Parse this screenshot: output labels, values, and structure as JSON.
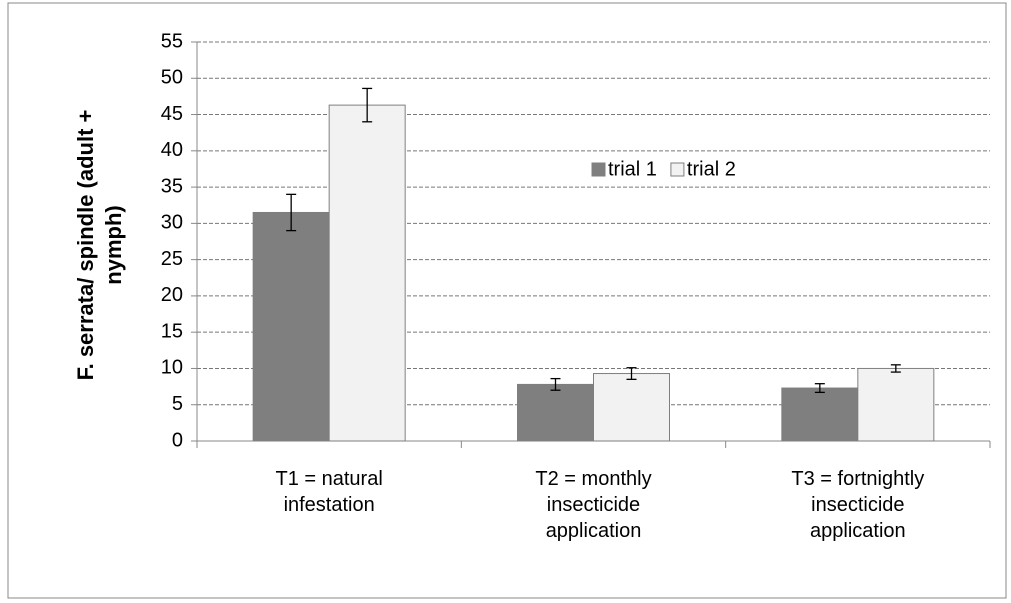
{
  "chart_data": {
    "type": "bar",
    "ylabel": "F. serrata/ spindle (adult + nymph)",
    "categories": [
      "T1 = natural infestation",
      "T2 = monthly insecticide application",
      "T3 = fortnightly insecticide application"
    ],
    "series": [
      {
        "name": "trial 1",
        "color": "#7f7f7f",
        "values": [
          31.5,
          7.8,
          7.3
        ],
        "errors": [
          2.5,
          0.8,
          0.6
        ]
      },
      {
        "name": "trial 2",
        "color": "#f2f2f2",
        "values": [
          46.3,
          9.3,
          10.0
        ],
        "errors": [
          2.3,
          0.8,
          0.5
        ]
      }
    ],
    "ylim": [
      0,
      55
    ],
    "yticks": [
      0,
      5,
      10,
      15,
      20,
      25,
      30,
      35,
      40,
      45,
      50,
      55
    ],
    "grid": true,
    "legend": "upper-center"
  }
}
